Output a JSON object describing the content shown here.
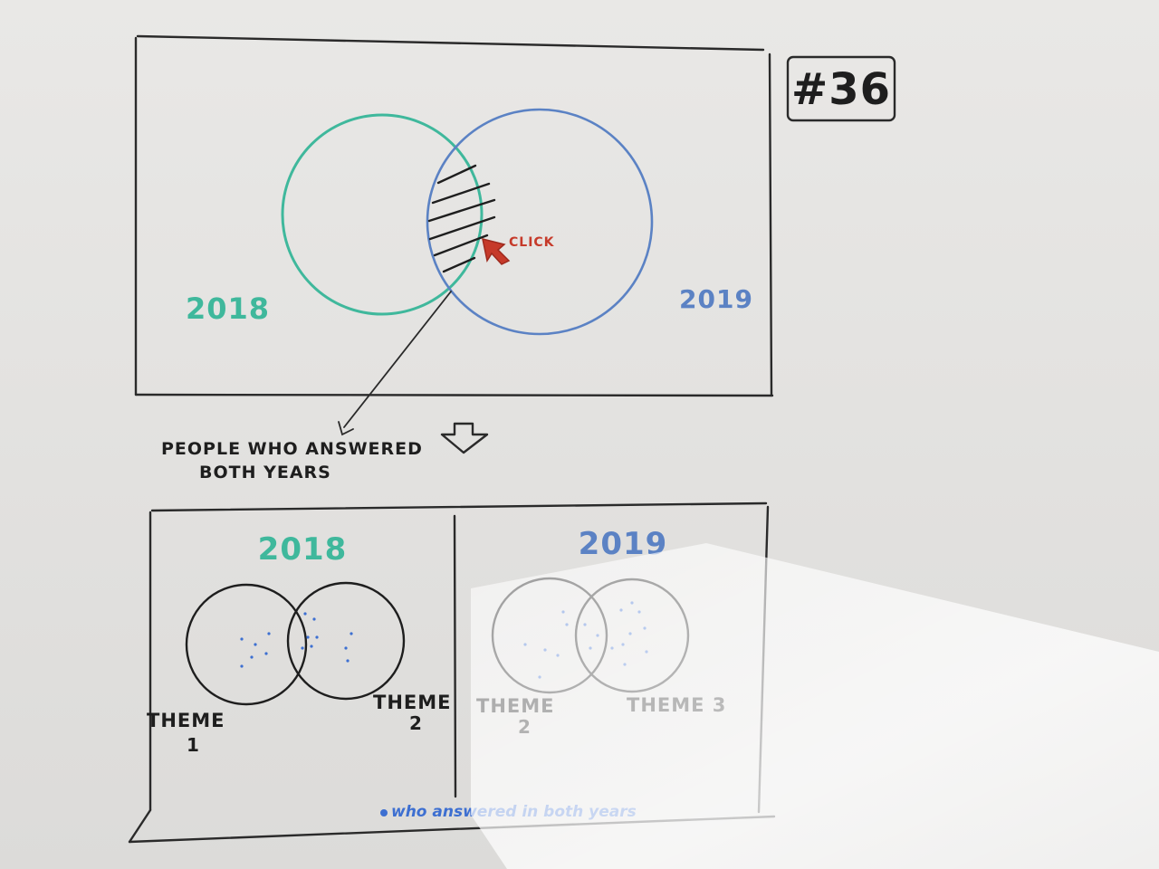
{
  "sheet_number": "#36",
  "top_panel": {
    "left_year": "2018",
    "right_year": "2019",
    "click_label": "CLICK"
  },
  "annotation": {
    "line1": "PEOPLE WHO ANSWERED",
    "line2": "BOTH YEARS"
  },
  "bottom_panel": {
    "left": {
      "year": "2018",
      "theme_a": "THEME",
      "theme_a_num": "1",
      "theme_b": "THEME",
      "theme_b_num": "2"
    },
    "right": {
      "year": "2019",
      "theme_a": "THEME",
      "theme_a_num": "2",
      "theme_b": "THEME 3"
    },
    "footnote": "who answered in both years"
  },
  "colors": {
    "ink": "#2a2a2a",
    "teal": "#3fb89c",
    "blue": "#5b82c4",
    "red": "#c63a2a",
    "dot_blue": "#3d6fd1"
  }
}
